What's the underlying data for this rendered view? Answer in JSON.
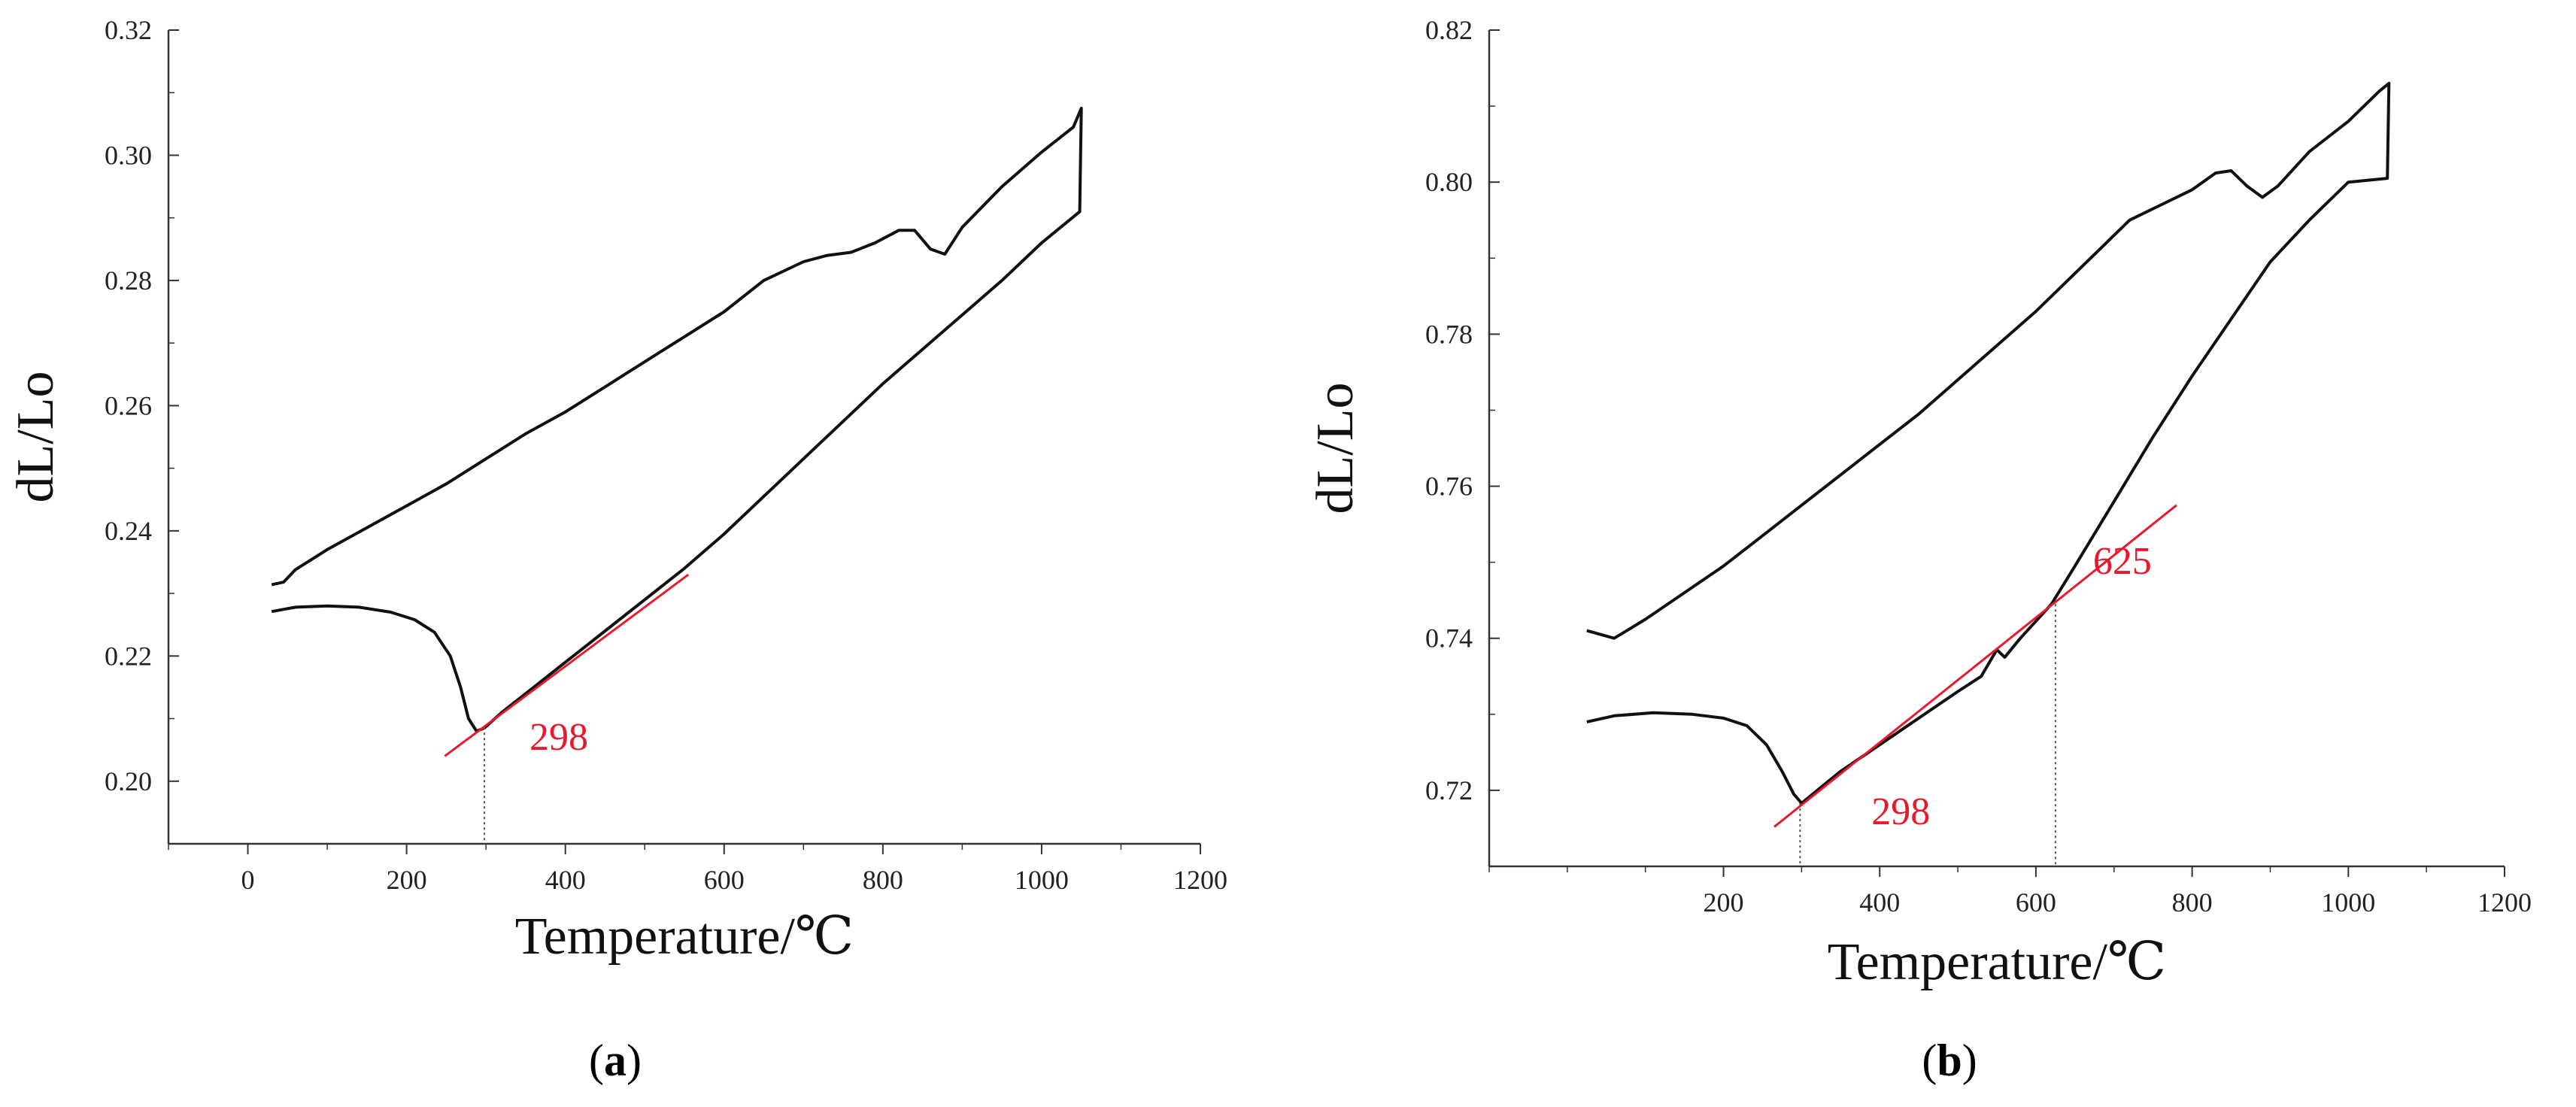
{
  "chart_data": [
    {
      "type": "line",
      "panel_label": "a",
      "xlabel": "Temperature/℃",
      "ylabel": "dL/Lo",
      "xlim": [
        -100,
        1200
      ],
      "ylim": [
        0.19,
        0.32
      ],
      "xticks": [
        0,
        200,
        400,
        600,
        800,
        1000,
        1200
      ],
      "yticks": [
        0.2,
        0.22,
        0.24,
        0.26,
        0.28,
        0.3,
        0.32
      ],
      "grid": false,
      "series": [
        {
          "points": [
            [
              30,
              0.2271
            ],
            [
              60,
              0.2278
            ],
            [
              100,
              0.228
            ],
            [
              140,
              0.2278
            ],
            [
              180,
              0.227
            ],
            [
              210,
              0.2258
            ],
            [
              235,
              0.2238
            ],
            [
              255,
              0.22
            ],
            [
              268,
              0.215
            ],
            [
              278,
              0.21
            ],
            [
              288,
              0.208
            ],
            [
              298,
              0.2085
            ],
            [
              320,
              0.211
            ],
            [
              360,
              0.215
            ],
            [
              400,
              0.219
            ],
            [
              450,
              0.224
            ],
            [
              500,
              0.229
            ],
            [
              550,
              0.234
            ],
            [
              600,
              0.2395
            ],
            [
              650,
              0.2455
            ],
            [
              700,
              0.2515
            ],
            [
              750,
              0.2575
            ],
            [
              800,
              0.2635
            ],
            [
              850,
              0.269
            ],
            [
              900,
              0.2745
            ],
            [
              950,
              0.28
            ],
            [
              1000,
              0.286
            ],
            [
              1048,
              0.291
            ],
            [
              1050,
              0.3075
            ],
            [
              1040,
              0.3045
            ],
            [
              1000,
              0.3005
            ],
            [
              950,
              0.295
            ],
            [
              900,
              0.2885
            ],
            [
              878,
              0.2842
            ],
            [
              860,
              0.285
            ],
            [
              840,
              0.288
            ],
            [
              820,
              0.288
            ],
            [
              790,
              0.286
            ],
            [
              760,
              0.2845
            ],
            [
              730,
              0.284
            ],
            [
              700,
              0.283
            ],
            [
              650,
              0.28
            ],
            [
              600,
              0.275
            ],
            [
              550,
              0.271
            ],
            [
              500,
              0.267
            ],
            [
              450,
              0.263
            ],
            [
              400,
              0.259
            ],
            [
              350,
              0.2555
            ],
            [
              300,
              0.2515
            ],
            [
              250,
              0.2475
            ],
            [
              200,
              0.244
            ],
            [
              150,
              0.2405
            ],
            [
              100,
              0.237
            ],
            [
              60,
              0.2338
            ],
            [
              45,
              0.2318
            ],
            [
              30,
              0.2314
            ]
          ]
        }
      ],
      "annotations": [
        {
          "text": "298",
          "x": 298,
          "y": 0.2086,
          "tangent": [
            [
              248,
              0.204
            ],
            [
              555,
              0.233
            ]
          ]
        }
      ]
    },
    {
      "type": "line",
      "panel_label": "b",
      "xlabel": "Temperature/℃",
      "ylabel": "dL/Lo",
      "xlim": [
        -100,
        1200
      ],
      "ylim": [
        0.71,
        0.82
      ],
      "xticks": [
        200,
        400,
        600,
        800,
        1000,
        1200
      ],
      "yticks": [
        0.72,
        0.74,
        0.76,
        0.78,
        0.8,
        0.82
      ],
      "grid": false,
      "series": [
        {
          "points": [
            [
              25,
              0.729
            ],
            [
              60,
              0.7298
            ],
            [
              110,
              0.7302
            ],
            [
              160,
              0.73
            ],
            [
              200,
              0.7295
            ],
            [
              230,
              0.7285
            ],
            [
              255,
              0.726
            ],
            [
              275,
              0.7225
            ],
            [
              290,
              0.7195
            ],
            [
              300,
              0.7183
            ],
            [
              320,
              0.72
            ],
            [
              350,
              0.7225
            ],
            [
              400,
              0.726
            ],
            [
              450,
              0.7295
            ],
            [
              500,
              0.733
            ],
            [
              530,
              0.735
            ],
            [
              550,
              0.7385
            ],
            [
              560,
              0.7375
            ],
            [
              580,
              0.74
            ],
            [
              620,
              0.7445
            ],
            [
              650,
              0.7495
            ],
            [
              700,
              0.758
            ],
            [
              750,
              0.7665
            ],
            [
              800,
              0.7745
            ],
            [
              850,
              0.782
            ],
            [
              900,
              0.7895
            ],
            [
              950,
              0.795
            ],
            [
              1000,
              0.8
            ],
            [
              1050,
              0.8005
            ],
            [
              1052,
              0.813
            ],
            [
              1040,
              0.812
            ],
            [
              1000,
              0.808
            ],
            [
              950,
              0.804
            ],
            [
              910,
              0.7995
            ],
            [
              890,
              0.798
            ],
            [
              870,
              0.7995
            ],
            [
              850,
              0.8015
            ],
            [
              830,
              0.8012
            ],
            [
              800,
              0.799
            ],
            [
              760,
              0.797
            ],
            [
              720,
              0.795
            ],
            [
              680,
              0.791
            ],
            [
              640,
              0.787
            ],
            [
              600,
              0.783
            ],
            [
              550,
              0.7785
            ],
            [
              500,
              0.774
            ],
            [
              450,
              0.7695
            ],
            [
              400,
              0.7655
            ],
            [
              350,
              0.7615
            ],
            [
              300,
              0.7575
            ],
            [
              250,
              0.7535
            ],
            [
              200,
              0.7495
            ],
            [
              150,
              0.746
            ],
            [
              100,
              0.7425
            ],
            [
              60,
              0.74
            ],
            [
              25,
              0.741
            ]
          ]
        }
      ],
      "annotations": [
        {
          "text": "298",
          "x": 298,
          "y": 0.7183,
          "tangent": [
            [
              265,
              0.7152
            ],
            [
              780,
              0.7575
            ]
          ]
        },
        {
          "text": "625",
          "x": 625,
          "y": 0.7445
        }
      ]
    }
  ]
}
